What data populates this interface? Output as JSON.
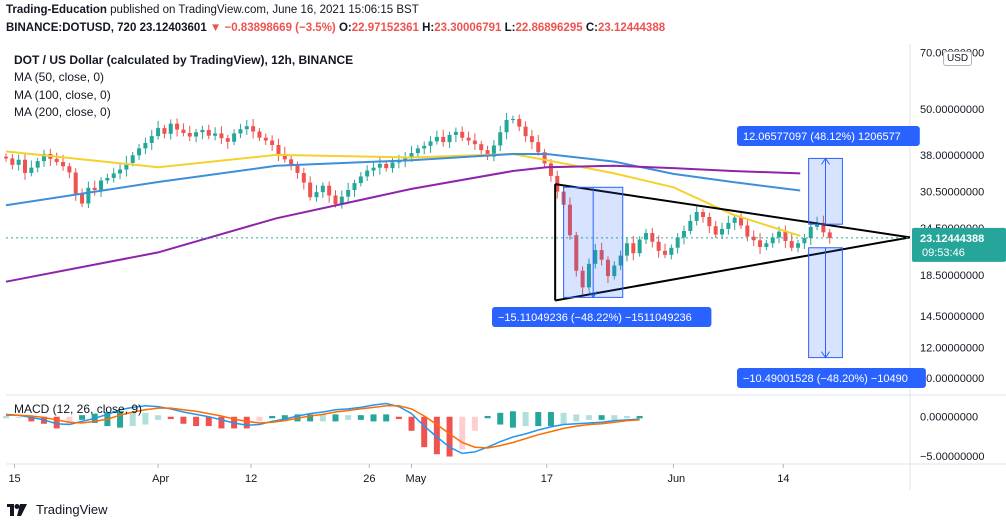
{
  "header": {
    "line1_author": "Trading-Education",
    "line1_rest": " published on TradingView.com, June 16, 2021 15:06:15 BST",
    "symbol": "BINANCE:DOTUSD, 720",
    "last": "23.12403601",
    "change": "▼ −0.83898669 (−3.5%)",
    "o_label": "O:",
    "o": "22.97152361",
    "h_label": "H:",
    "h": "23.30006791",
    "l_label": "L:",
    "l": "22.86896295",
    "c_label": "C:",
    "c": "23.12444388"
  },
  "legend": {
    "title": "DOT / US Dollar (calculated by TradingView), 12h, BINANCE",
    "ma50": "MA (50, close, 0)",
    "ma100": "MA (100, close, 0)",
    "ma200": "MA (200, close, 0)",
    "macd": "MACD (12, 26, close, 9)"
  },
  "currency_badge": "USD",
  "footer": {
    "brand": "TradingView"
  },
  "colors": {
    "up": "#26a69a",
    "down": "#ef5350",
    "ma50": "#f5d12c",
    "ma100": "#3d8fd9",
    "ma200": "#8e24aa",
    "measure": "#2962ff",
    "macd_line": "#2196f3",
    "signal_line": "#ff6d00"
  },
  "chart_data": [
    {
      "type": "candlestick",
      "title": "DOT / US Dollar (calculated by TradingView), 12h, BINANCE",
      "y_scale": "log",
      "ylim": [
        9.2,
        72
      ],
      "y_ticks": [
        70,
        50,
        38,
        30.5,
        24.5,
        18.5,
        14.5,
        12,
        10
      ],
      "y_tick_labels": [
        "70.00000000",
        "50.00000000",
        "38.00000000",
        "30.50000000",
        "24.50000000",
        "18.50000000",
        "14.50000000",
        "12.00000000",
        "10.00000000"
      ],
      "x_ticks": [
        "15",
        "Apr",
        "12",
        "26",
        "May",
        "17",
        "Jun",
        "14"
      ],
      "x_tick_dates": [
        "2021-03-15",
        "2021-04-01",
        "2021-04-12",
        "2021-04-26",
        "2021-05-01",
        "2021-05-17",
        "2021-06-01",
        "2021-06-14"
      ],
      "xlim": [
        "2021-03-14",
        "2021-06-29"
      ],
      "price_candles_close": [
        37.2,
        35.8,
        36.9,
        34.1,
        35.2,
        36.6,
        38.2,
        37.1,
        36.4,
        35.5,
        34.2,
        30.1,
        28.4,
        31.2,
        30.8,
        32.6,
        33.1,
        34.0,
        34.8,
        36.2,
        37.9,
        39.5,
        40.8,
        42.5,
        44.6,
        43.1,
        45.8,
        44.2,
        43.3,
        42.4,
        43.5,
        44.1,
        42.6,
        43.2,
        42.0,
        41.1,
        43.2,
        44.3,
        45.1,
        43.7,
        42.1,
        41.4,
        40.3,
        38.2,
        37.0,
        35.6,
        34.1,
        32.2,
        29.5,
        30.4,
        31.6,
        29.8,
        28.3,
        29.6,
        30.8,
        32.1,
        33.4,
        34.6,
        35.2,
        36.0,
        35.1,
        36.3,
        36.8,
        37.2,
        38.4,
        39.5,
        40.1,
        41.2,
        42.3,
        41.0,
        42.8,
        43.6,
        42.1,
        41.4,
        40.5,
        39.1,
        37.6,
        40.2,
        43.5,
        46.8,
        47.1,
        45.0,
        42.5,
        41.0,
        38.6,
        36.1,
        33.5,
        30.5,
        28.2,
        23.5,
        19.0,
        17.2,
        19.8,
        21.5,
        20.3,
        18.4,
        19.6,
        20.8,
        22.4,
        21.1,
        22.9,
        23.8,
        22.6,
        21.4,
        20.9,
        21.8,
        23.2,
        24.1,
        25.6,
        27.0,
        26.2,
        24.8,
        23.6,
        24.4,
        25.3,
        26.1,
        24.9,
        23.3,
        22.8,
        21.9,
        22.4,
        23.2,
        24.0,
        22.7,
        21.8,
        22.4,
        23.1,
        24.7,
        25.3,
        23.9,
        23.12
      ],
      "series": [
        {
          "name": "MA (50, close, 0)",
          "color": "#f5d12c",
          "x": [
            "2021-03-14",
            "2021-04-01",
            "2021-04-15",
            "2021-05-01",
            "2021-05-13",
            "2021-05-17",
            "2021-05-25",
            "2021-06-01",
            "2021-06-08",
            "2021-06-16"
          ],
          "y": [
            38.8,
            35.3,
            38.0,
            37.4,
            38.2,
            36.8,
            34.0,
            31.3,
            26.6,
            23.4
          ]
        },
        {
          "name": "MA (100, close, 0)",
          "color": "#3d8fd9",
          "x": [
            "2021-03-14",
            "2021-04-01",
            "2021-04-15",
            "2021-05-01",
            "2021-05-13",
            "2021-05-17",
            "2021-05-25",
            "2021-06-01",
            "2021-06-08",
            "2021-06-16"
          ],
          "y": [
            28.1,
            32.3,
            35.6,
            36.8,
            38.2,
            38.2,
            36.5,
            33.9,
            32.3,
            30.7
          ]
        },
        {
          "name": "MA (200, close, 0)",
          "color": "#8e24aa",
          "x": [
            "2021-03-14",
            "2021-04-01",
            "2021-04-15",
            "2021-05-01",
            "2021-05-13",
            "2021-05-17",
            "2021-05-25",
            "2021-06-01",
            "2021-06-08",
            "2021-06-16"
          ],
          "y": [
            17.8,
            21.2,
            26.0,
            31.0,
            34.5,
            35.3,
            35.6,
            35.1,
            34.5,
            34.0
          ]
        }
      ],
      "annotations": {
        "last_price": "23.12444388",
        "countdown": "09:53:46",
        "triangle": {
          "upper_from": [
            "2021-05-18",
            31.9
          ],
          "lower_from": [
            "2021-05-18",
            15.9
          ],
          "apex": [
            "2021-06-29",
            23.2
          ]
        },
        "measure_1": {
          "label": "−15.11049236 (−48.22%) −1511049236",
          "from": 31.3,
          "to": 16.2
        },
        "measure_2": {
          "label": "12.06577097 (48.12%) 1206577",
          "from": 25.1,
          "to": 37.2
        },
        "measure_3": {
          "label": "−10.49001528 (−48.20%) −10490",
          "from": 21.8,
          "to": 11.3
        }
      }
    },
    {
      "type": "macd",
      "title": "MACD (12, 26, close, 9)",
      "ylim": [
        -5.8,
        2.4
      ],
      "y_ticks": [
        0,
        -5
      ],
      "y_tick_labels": [
        "0.00000000",
        "−5.00000000"
      ],
      "series": [
        {
          "name": "MACD",
          "color": "#2196f3",
          "values": [
            0.3,
            0.2,
            -0.1,
            -0.4,
            -0.9,
            -1.0,
            -0.6,
            -0.2,
            0.3,
            0.9,
            1.2,
            1.4,
            1.3,
            1.0,
            0.6,
            0.3,
            0.0,
            -0.4,
            -0.8,
            -1.1,
            -1.0,
            -0.6,
            -0.3,
            0.1,
            0.4,
            0.6,
            0.9,
            1.0,
            1.2,
            1.5,
            1.7,
            1.3,
            0.4,
            -1.2,
            -2.6,
            -3.9,
            -4.7,
            -4.5,
            -3.9,
            -3.2,
            -2.6,
            -2.2,
            -1.7,
            -1.3,
            -1.0,
            -0.9,
            -0.8,
            -0.7,
            -0.5,
            -0.4,
            -0.3
          ]
        },
        {
          "name": "Signal",
          "color": "#ff6d00",
          "values": [
            0.2,
            0.2,
            0.1,
            -0.1,
            -0.4,
            -0.7,
            -0.8,
            -0.6,
            -0.3,
            0.2,
            0.6,
            0.9,
            1.1,
            1.1,
            0.9,
            0.7,
            0.4,
            0.1,
            -0.3,
            -0.6,
            -0.8,
            -0.7,
            -0.5,
            -0.2,
            0.1,
            0.3,
            0.6,
            0.8,
            1.0,
            1.2,
            1.4,
            1.4,
            1.0,
            0.1,
            -1.0,
            -2.2,
            -3.3,
            -3.9,
            -4.0,
            -3.7,
            -3.3,
            -2.8,
            -2.3,
            -1.9,
            -1.5,
            -1.2,
            -1.0,
            -0.9,
            -0.7,
            -0.5,
            -0.4
          ]
        }
      ]
    }
  ]
}
